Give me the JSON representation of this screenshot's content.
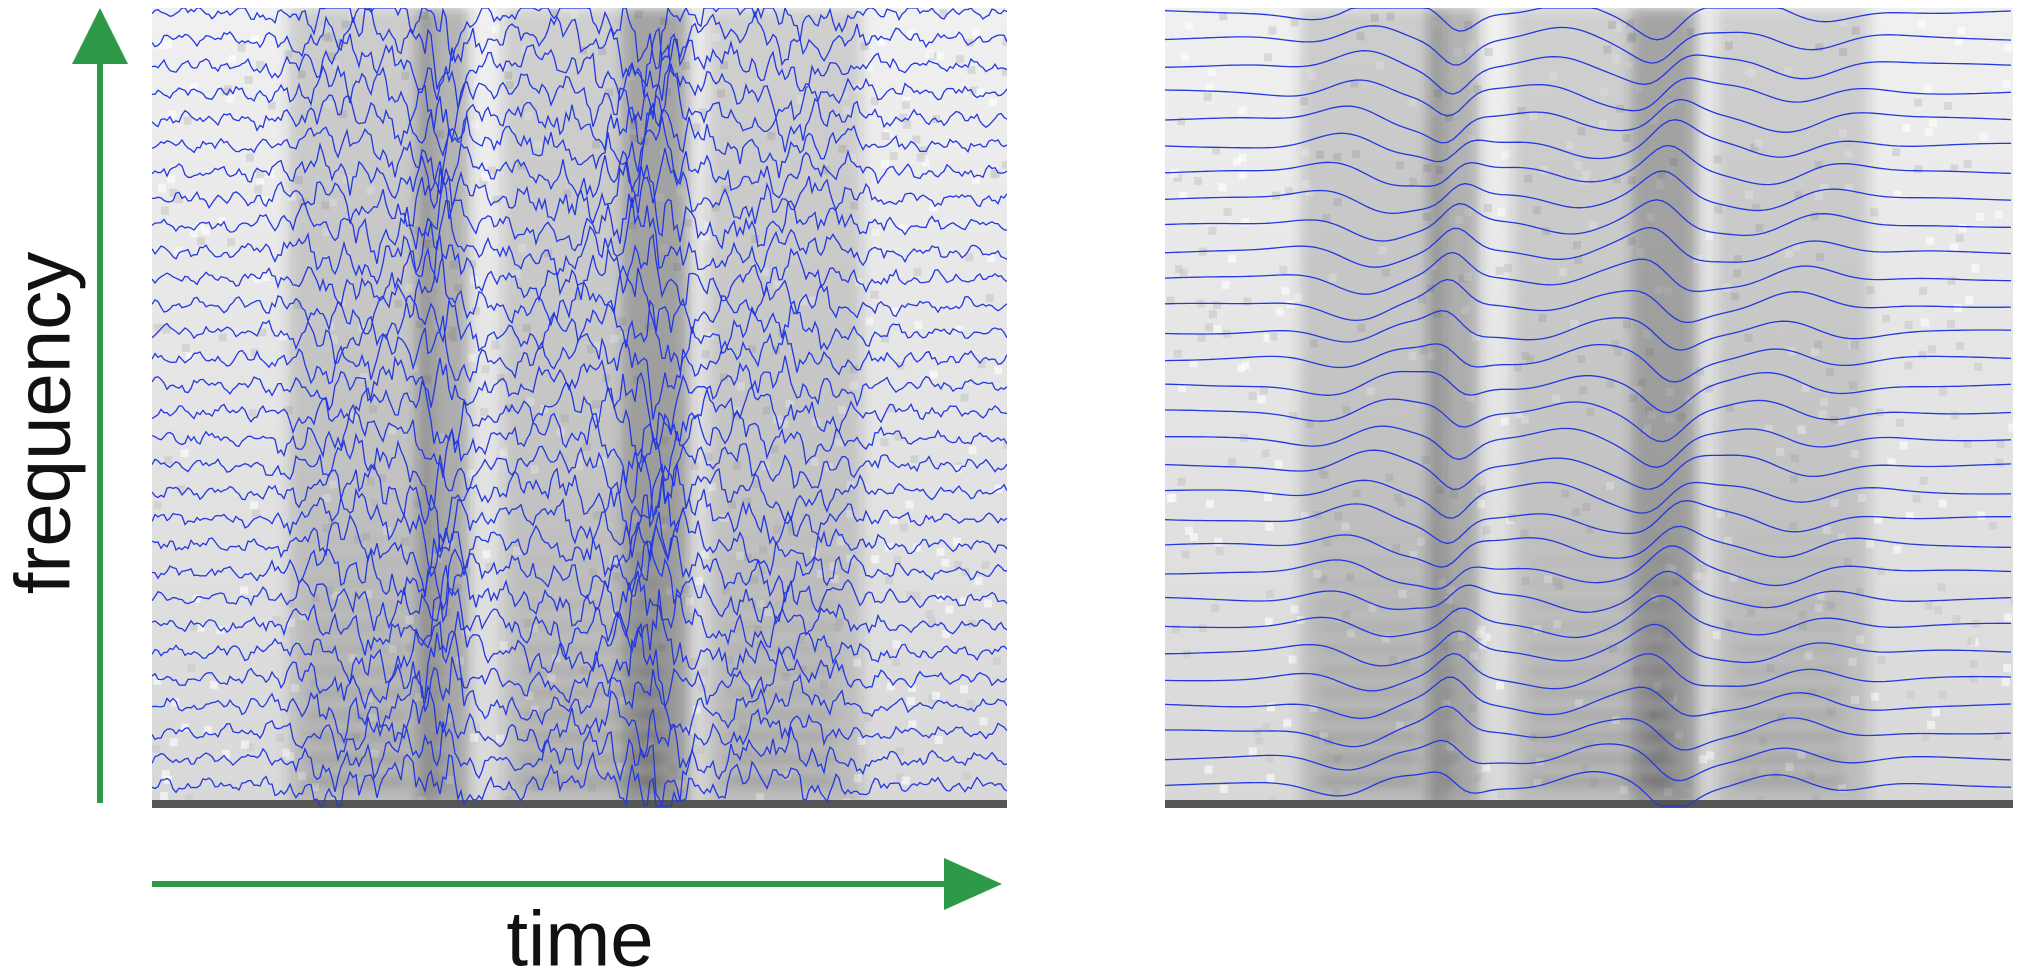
{
  "labels": {
    "y_axis": "frequency",
    "x_axis": "time"
  }
}
